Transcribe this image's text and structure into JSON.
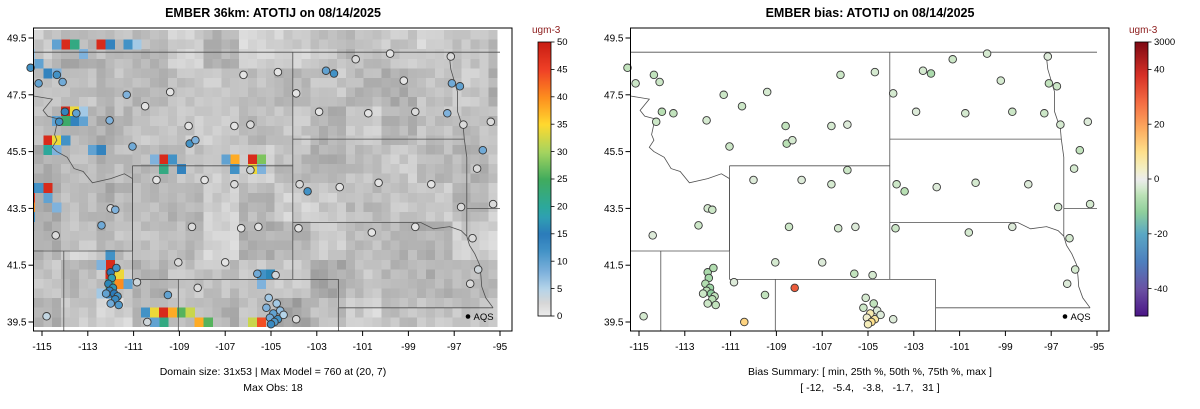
{
  "page": {
    "background": "#ffffff"
  },
  "left_panel": {
    "title": "EMBER 36km: ATOTIJ on 08/14/2025",
    "caption_line1": "Domain size: 31x53 | Max Model = 760 at (20, 7)",
    "caption_line2": "Max Obs: 18",
    "colorbar": {
      "label": "ugm-3",
      "label_color": "#8b1a1a",
      "range": [
        0,
        50
      ],
      "ticks": [
        0,
        5,
        10,
        15,
        20,
        25,
        30,
        35,
        40,
        45,
        50
      ]
    },
    "legend": {
      "label": "AQS"
    }
  },
  "right_panel": {
    "title": "EMBER bias: ATOTIJ on 08/14/2025",
    "caption_line1": "Bias Summary: [ min, 25th %, 50th %, 75th %, max ]",
    "caption_line2": "[ -12,   -5.4,   -3.8,   -1.7,   31 ]",
    "colorbar": {
      "label": "ugm-3",
      "label_color": "#8b1a1a",
      "range": [
        -50,
        50
      ],
      "top_label": "3000",
      "ticks": [
        40,
        20,
        0,
        -20,
        -40
      ]
    },
    "legend": {
      "label": "AQS"
    }
  },
  "axes": {
    "x_tick_values": [
      -115,
      -113,
      -111,
      -109,
      -107,
      -105,
      -103,
      -101,
      -99,
      -97,
      -95
    ],
    "x_tick_labels": [
      "-115",
      "-113",
      "-111",
      "-109",
      "-107",
      "-105",
      "-103",
      "-101",
      "-99",
      "-97",
      "-95"
    ],
    "y_tick_values": [
      39.5,
      41.5,
      43.5,
      45.5,
      47.5,
      49.5
    ],
    "y_tick_labels": [
      "39.5",
      "41.5",
      "43.5",
      "45.5",
      "47.5",
      "49.5"
    ]
  },
  "colors": {
    "border": "#4f4f4f",
    "box": "#000000",
    "point_stroke": "#383838"
  },
  "scales": {
    "left_stops": [
      [
        0,
        "#ededed"
      ],
      [
        2.5,
        "#d6d6d6"
      ],
      [
        5,
        "#b5d4e9"
      ],
      [
        8,
        "#7fb2dc"
      ],
      [
        12,
        "#4292c6"
      ],
      [
        15,
        "#2b7bba"
      ],
      [
        18,
        "#2f9fb3"
      ],
      [
        20,
        "#2ca89b"
      ],
      [
        25,
        "#41ab5d"
      ],
      [
        30,
        "#a5d45f"
      ],
      [
        35,
        "#ffd92f"
      ],
      [
        40,
        "#fd8d1e"
      ],
      [
        45,
        "#ef4026"
      ],
      [
        50,
        "#c91d13"
      ]
    ],
    "right_stops": [
      [
        -50,
        "#4a1486"
      ],
      [
        -40,
        "#6a51a3"
      ],
      [
        -30,
        "#4d7fbe"
      ],
      [
        -20,
        "#5aa7c4"
      ],
      [
        -12,
        "#8ecf9c"
      ],
      [
        -6,
        "#b9e0b4"
      ],
      [
        -3,
        "#d5ead0"
      ],
      [
        0,
        "#ececec"
      ],
      [
        4,
        "#f3efc3"
      ],
      [
        10,
        "#fee08b"
      ],
      [
        18,
        "#fdae61"
      ],
      [
        28,
        "#f46d43"
      ],
      [
        38,
        "#d73027"
      ],
      [
        50,
        "#7f0a14"
      ]
    ]
  },
  "noise_seed": 7,
  "chart_data": [
    {
      "type": "heatmap",
      "title": "EMBER 36km: ATOTIJ on 08/14/2025",
      "xlim": [
        -115.72,
        -95.12
      ],
      "ylim": [
        39.33,
        49.78
      ],
      "x_ticks": [
        -115,
        -113,
        -111,
        -109,
        -107,
        -105,
        -103,
        -101,
        -99,
        -97,
        -95
      ],
      "y_ticks": [
        39.5,
        41.5,
        43.5,
        45.5,
        47.5,
        49.5
      ],
      "grid_rows": 31,
      "grid_cols": 53,
      "colorbar_label": "ugm-3",
      "colorbar_range": [
        0,
        50
      ],
      "annotations": {
        "domain_size": "31x53",
        "max_model": 760,
        "max_model_cell": "(20, 7)",
        "max_obs": 18
      },
      "cells_lon_lat_value": [
        [
          -114.1,
          49.4,
          48
        ],
        [
          -113.7,
          49.4,
          22
        ],
        [
          -114.5,
          49.4,
          10
        ],
        [
          -112.6,
          49.4,
          48
        ],
        [
          -112.2,
          49.4,
          14
        ],
        [
          -113.3,
          49.1,
          10
        ],
        [
          -111.3,
          49.4,
          12
        ],
        [
          -110.9,
          49.4,
          6
        ],
        [
          -113.0,
          48.8,
          8
        ],
        [
          -115.3,
          48.6,
          10
        ],
        [
          -114.9,
          48.3,
          14
        ],
        [
          -115.6,
          49.0,
          6
        ],
        [
          -114.3,
          48.1,
          8
        ],
        [
          -114.1,
          47.0,
          48
        ],
        [
          -113.7,
          47.0,
          34
        ],
        [
          -113.7,
          46.7,
          14
        ],
        [
          -114.1,
          46.7,
          24
        ],
        [
          -114.5,
          46.7,
          10
        ],
        [
          -113.3,
          46.7,
          10
        ],
        [
          -113.3,
          47.0,
          6
        ],
        [
          -114.7,
          45.9,
          48
        ],
        [
          -114.3,
          45.9,
          34
        ],
        [
          -113.9,
          45.9,
          12
        ],
        [
          -114.7,
          45.5,
          20
        ],
        [
          -114.3,
          45.5,
          8
        ],
        [
          -112.7,
          45.4,
          10
        ],
        [
          -112.3,
          45.4,
          14
        ],
        [
          -109.6,
          45.2,
          48
        ],
        [
          -109.2,
          45.2,
          12
        ],
        [
          -108.8,
          45.0,
          14
        ],
        [
          -109.6,
          44.9,
          22
        ],
        [
          -110.0,
          45.2,
          8
        ],
        [
          -106.4,
          45.1,
          38
        ],
        [
          -106.0,
          45.1,
          48
        ],
        [
          -105.6,
          45.1,
          28
        ],
        [
          -106.0,
          44.8,
          34
        ],
        [
          -106.4,
          44.8,
          12
        ],
        [
          -105.6,
          44.8,
          8
        ],
        [
          -106.8,
          45.1,
          10
        ],
        [
          -114.9,
          44.3,
          48
        ],
        [
          -115.3,
          44.3,
          12
        ],
        [
          -114.9,
          43.9,
          10
        ],
        [
          -115.7,
          43.9,
          46
        ],
        [
          -115.7,
          43.5,
          40
        ],
        [
          -115.7,
          43.1,
          12
        ],
        [
          -115.7,
          44.3,
          14
        ],
        [
          -114.5,
          43.5,
          8
        ],
        [
          -112.1,
          41.7,
          12
        ],
        [
          -111.9,
          41.4,
          48
        ],
        [
          -112.1,
          41.1,
          48
        ],
        [
          -111.7,
          41.1,
          34
        ],
        [
          -112.1,
          40.7,
          22
        ],
        [
          -111.7,
          40.7,
          40
        ],
        [
          -111.3,
          40.7,
          10
        ],
        [
          -112.5,
          41.4,
          8
        ],
        [
          -111.9,
          40.4,
          14
        ],
        [
          -112.3,
          40.4,
          6
        ],
        [
          -110.4,
          40.0,
          12
        ],
        [
          -110.0,
          40.0,
          34
        ],
        [
          -109.6,
          40.0,
          48
        ],
        [
          -109.2,
          40.0,
          38
        ],
        [
          -108.8,
          40.0,
          26
        ],
        [
          -109.6,
          39.6,
          22
        ],
        [
          -110.0,
          39.6,
          10
        ],
        [
          -108.4,
          39.8,
          32
        ],
        [
          -108.0,
          39.6,
          38
        ],
        [
          -107.6,
          39.5,
          26
        ],
        [
          -105.7,
          39.6,
          32
        ],
        [
          -105.3,
          39.5,
          44
        ],
        [
          -105.5,
          41.1,
          12
        ],
        [
          -105.1,
          41.1,
          16
        ],
        [
          -105.3,
          40.8,
          8
        ]
      ]
    },
    {
      "type": "scatter",
      "title": "EMBER bias: ATOTIJ on 08/14/2025",
      "xlim": [
        -115.72,
        -95.12
      ],
      "ylim": [
        39.33,
        49.78
      ],
      "colorbar_label": "ugm-3",
      "colorbar_range": [
        -50,
        50
      ],
      "colorbar_top_label": "3000",
      "bias_summary": {
        "min": -12,
        "p25": -5.4,
        "p50": -3.8,
        "p75": -1.7,
        "max": 31
      }
    }
  ],
  "stations_lon_lat_obs_bias": [
    [
      -115.5,
      48.45,
      12,
      -5
    ],
    [
      -115.15,
      47.9,
      10,
      -4
    ],
    [
      -114.35,
      48.2,
      12,
      -5
    ],
    [
      -114.1,
      47.95,
      9,
      -4
    ],
    [
      -114.0,
      46.9,
      14,
      -6
    ],
    [
      -113.5,
      46.85,
      10,
      -5
    ],
    [
      -114.25,
      46.55,
      12,
      -4
    ],
    [
      -112.05,
      46.6,
      8,
      -3
    ],
    [
      -111.3,
      47.5,
      8,
      -4
    ],
    [
      -111.05,
      45.68,
      9,
      -4
    ],
    [
      -108.55,
      45.78,
      12,
      -6
    ],
    [
      -108.3,
      45.9,
      8,
      -3
    ],
    [
      -110.5,
      47.1,
      1,
      -4
    ],
    [
      -109.4,
      47.6,
      1,
      -3
    ],
    [
      -108.6,
      46.4,
      1,
      -5
    ],
    [
      -106.6,
      46.4,
      1,
      -3
    ],
    [
      -105.9,
      46.45,
      2,
      -2
    ],
    [
      -106.2,
      48.2,
      1,
      -4
    ],
    [
      -104.7,
      48.3,
      1,
      -3
    ],
    [
      -102.6,
      48.35,
      10,
      -3
    ],
    [
      -102.25,
      48.25,
      12,
      -8
    ],
    [
      -101.3,
      48.75,
      2,
      -4
    ],
    [
      -99.8,
      48.95,
      1,
      -3
    ],
    [
      -97.15,
      48.85,
      2,
      -2
    ],
    [
      -97.1,
      47.9,
      9,
      -5
    ],
    [
      -96.75,
      47.8,
      10,
      -4
    ],
    [
      -103.9,
      47.55,
      1,
      -3
    ],
    [
      -102.9,
      46.9,
      1,
      -2
    ],
    [
      -99.2,
      48.0,
      1,
      -3
    ],
    [
      -100.75,
      46.85,
      1,
      -3
    ],
    [
      -98.7,
      46.9,
      2,
      -4
    ],
    [
      -97.3,
      46.85,
      8,
      -4
    ],
    [
      -96.6,
      46.45,
      2,
      -3
    ],
    [
      -95.4,
      46.55,
      2,
      -2
    ],
    [
      -95.75,
      45.55,
      9,
      -5
    ],
    [
      -96.0,
      44.9,
      2,
      -3
    ],
    [
      -96.7,
      43.55,
      2,
      -3
    ],
    [
      -98.0,
      44.35,
      1,
      -2
    ],
    [
      -100.3,
      44.4,
      1,
      -3
    ],
    [
      -102.0,
      44.25,
      1,
      -2
    ],
    [
      -103.4,
      44.1,
      12,
      -6
    ],
    [
      -103.75,
      44.35,
      2,
      -4
    ],
    [
      -95.3,
      43.65,
      2,
      -3
    ],
    [
      -98.7,
      42.85,
      1,
      -2
    ],
    [
      -100.6,
      42.65,
      1,
      -3
    ],
    [
      -103.8,
      42.8,
      1,
      -4
    ],
    [
      -96.2,
      42.45,
      2,
      -3
    ],
    [
      -95.95,
      41.35,
      3,
      -3
    ],
    [
      -96.3,
      40.85,
      2,
      -2
    ],
    [
      -106.3,
      42.8,
      1,
      -3
    ],
    [
      -105.55,
      42.85,
      1,
      -2
    ],
    [
      -108.45,
      42.85,
      2,
      -4
    ],
    [
      -109.05,
      41.6,
      2,
      -3
    ],
    [
      -107.0,
      41.6,
      1,
      -2
    ],
    [
      -105.6,
      41.2,
      9,
      -5
    ],
    [
      -104.8,
      41.15,
      3,
      -3
    ],
    [
      -106.6,
      44.35,
      2,
      -3
    ],
    [
      -107.9,
      44.5,
      1,
      -2
    ],
    [
      -105.9,
      44.85,
      3,
      -4
    ],
    [
      -110.0,
      44.5,
      1,
      -2
    ],
    [
      -105.1,
      40.35,
      6,
      -3
    ],
    [
      -104.75,
      40.15,
      6,
      -5
    ],
    [
      -105.2,
      40.0,
      8,
      -4
    ],
    [
      -104.6,
      39.9,
      7,
      -2
    ],
    [
      -104.9,
      39.8,
      10,
      6
    ],
    [
      -105.05,
      39.65,
      9,
      3
    ],
    [
      -104.7,
      39.6,
      12,
      8
    ],
    [
      -104.85,
      39.5,
      11,
      10
    ],
    [
      -105.0,
      39.42,
      13,
      5
    ],
    [
      -104.45,
      39.75,
      5,
      -2
    ],
    [
      -103.9,
      39.6,
      2,
      -2
    ],
    [
      -112.0,
      41.25,
      15,
      -8
    ],
    [
      -111.95,
      41.05,
      18,
      -9
    ],
    [
      -112.1,
      40.85,
      16,
      -7
    ],
    [
      -111.9,
      40.7,
      17,
      -10
    ],
    [
      -112.05,
      40.6,
      14,
      -6
    ],
    [
      -111.85,
      40.5,
      15,
      -12
    ],
    [
      -111.7,
      40.4,
      12,
      -5
    ],
    [
      -112.2,
      40.5,
      10,
      -4
    ],
    [
      -111.8,
      40.3,
      13,
      -6
    ],
    [
      -111.65,
      40.1,
      11,
      -5
    ],
    [
      -112.0,
      40.15,
      9,
      -4
    ],
    [
      -111.75,
      41.4,
      12,
      -7
    ],
    [
      -110.85,
      40.9,
      3,
      -2
    ],
    [
      -109.5,
      40.45,
      10,
      -5
    ],
    [
      -108.2,
      40.7,
      2,
      31
    ],
    [
      -110.4,
      39.5,
      3,
      12
    ],
    [
      -112.4,
      42.9,
      9,
      -4
    ],
    [
      -112.0,
      43.5,
      2,
      -3
    ],
    [
      -111.8,
      43.45,
      8,
      -4
    ],
    [
      -114.4,
      42.55,
      2,
      -2
    ],
    [
      -114.8,
      39.7,
      4,
      -3
    ]
  ],
  "map_borders": [
    [
      [
        -116,
        49
      ],
      [
        -95,
        49
      ]
    ],
    [
      [
        -104.05,
        49
      ],
      [
        -104.05,
        41.0
      ]
    ],
    [
      [
        -104.05,
        45.94
      ],
      [
        -96.56,
        45.94
      ]
    ],
    [
      [
        -97.23,
        49.0
      ],
      [
        -97.15,
        48.4
      ],
      [
        -96.85,
        47.6
      ],
      [
        -96.85,
        46.9
      ],
      [
        -96.6,
        46.3
      ],
      [
        -96.56,
        45.94
      ]
    ],
    [
      [
        -96.56,
        45.94
      ],
      [
        -96.45,
        45.3
      ],
      [
        -96.45,
        42.52
      ]
    ],
    [
      [
        -104.05,
        43.0
      ],
      [
        -98.45,
        43.0
      ],
      [
        -97.9,
        42.78
      ],
      [
        -97.2,
        42.86
      ],
      [
        -96.7,
        42.72
      ],
      [
        -96.45,
        42.52
      ]
    ],
    [
      [
        -96.45,
        42.52
      ],
      [
        -96.33,
        42.2
      ],
      [
        -96.1,
        41.9
      ],
      [
        -95.88,
        41.5
      ],
      [
        -95.83,
        41.1
      ],
      [
        -95.8,
        40.75
      ],
      [
        -95.62,
        40.35
      ],
      [
        -95.3,
        40.0
      ]
    ],
    [
      [
        -102.05,
        40.0
      ],
      [
        -95.3,
        40.0
      ]
    ],
    [
      [
        -102.05,
        41.0
      ],
      [
        -102.05,
        39.2
      ]
    ],
    [
      [
        -111.05,
        41.0
      ],
      [
        -102.05,
        41.0
      ]
    ],
    [
      [
        -111.05,
        45.0
      ],
      [
        -104.05,
        45.0
      ]
    ],
    [
      [
        -111.05,
        45.0
      ],
      [
        -111.05,
        41.0
      ]
    ],
    [
      [
        -109.05,
        41.0
      ],
      [
        -109.05,
        39.2
      ]
    ],
    [
      [
        -114.05,
        42.0
      ],
      [
        -114.05,
        39.2
      ]
    ],
    [
      [
        -116.0,
        42.0
      ],
      [
        -111.05,
        42.0
      ]
    ],
    [
      [
        -111.05,
        44.55
      ],
      [
        -111.05,
        42.0
      ]
    ],
    [
      [
        -96.45,
        43.5
      ],
      [
        -95.0,
        43.5
      ]
    ],
    [
      [
        -111.05,
        44.55
      ],
      [
        -111.4,
        44.72
      ],
      [
        -112.0,
        44.55
      ],
      [
        -112.8,
        44.4
      ],
      [
        -113.2,
        44.8
      ],
      [
        -113.6,
        44.9
      ],
      [
        -113.9,
        45.3
      ],
      [
        -114.35,
        45.5
      ],
      [
        -114.55,
        45.65
      ],
      [
        -114.35,
        45.9
      ],
      [
        -114.45,
        46.1
      ],
      [
        -114.3,
        46.65
      ],
      [
        -114.75,
        46.75
      ],
      [
        -114.95,
        46.95
      ],
      [
        -114.55,
        47.35
      ],
      [
        -115.7,
        47.5
      ],
      [
        -116.05,
        48.0
      ],
      [
        -116.05,
        49.0
      ]
    ]
  ]
}
